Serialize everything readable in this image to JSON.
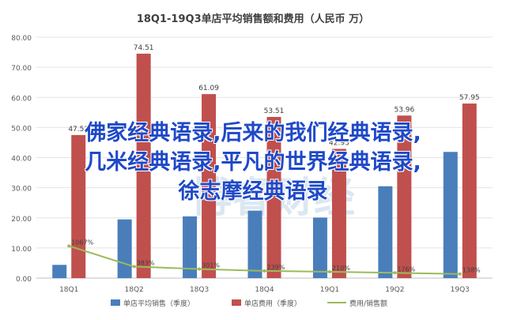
{
  "chart_data": {
    "type": "bar",
    "title": "18Q1-19Q3单店平均销售额和费用（人民币 万）",
    "categories": [
      "18Q1",
      "18Q2",
      "18Q3",
      "18Q4",
      "19Q1",
      "19Q2",
      "19Q3"
    ],
    "ylim": [
      0,
      80
    ],
    "y_ticks": [
      "0.00",
      "10.00",
      "20.00",
      "30.00",
      "40.00",
      "50.00",
      "60.00",
      "70.00",
      "80.00"
    ],
    "grid": true,
    "legend_position": "bottom",
    "series": [
      {
        "name": "单店平均销售（季度）",
        "type": "bar",
        "color": "#4a7ebb",
        "values": [
          4.4,
          19.5,
          20.5,
          22.4,
          20.1,
          30.5,
          41.9
        ],
        "labels": [
          "",
          "",
          "",
          "",
          "",
          "",
          ""
        ]
      },
      {
        "name": "单店费用（季度）",
        "type": "bar",
        "color": "#c0504d",
        "values": [
          47.5,
          74.51,
          61.09,
          53.51,
          42.9,
          53.96,
          57.95
        ],
        "labels": [
          "47.53",
          "74.51",
          "61.09",
          "53.51",
          "42.93",
          "53.96",
          "57.95"
        ]
      },
      {
        "name": "费用/销售额",
        "type": "line",
        "color": "#9bbb59",
        "values": [
          10.67,
          3.83,
          3.01,
          2.39,
          2.1,
          1.76,
          1.38
        ],
        "labels": [
          "1067%",
          "383%",
          "301%",
          "239%",
          "210%",
          "176%",
          "138%"
        ]
      }
    ]
  },
  "watermark": "博睿财经",
  "overlay_lines": [
    "佛家经典语录,后来的我们经典语录,",
    "几米经典语录,平凡的世界经典语录,",
    "徐志摩经典语录"
  ]
}
